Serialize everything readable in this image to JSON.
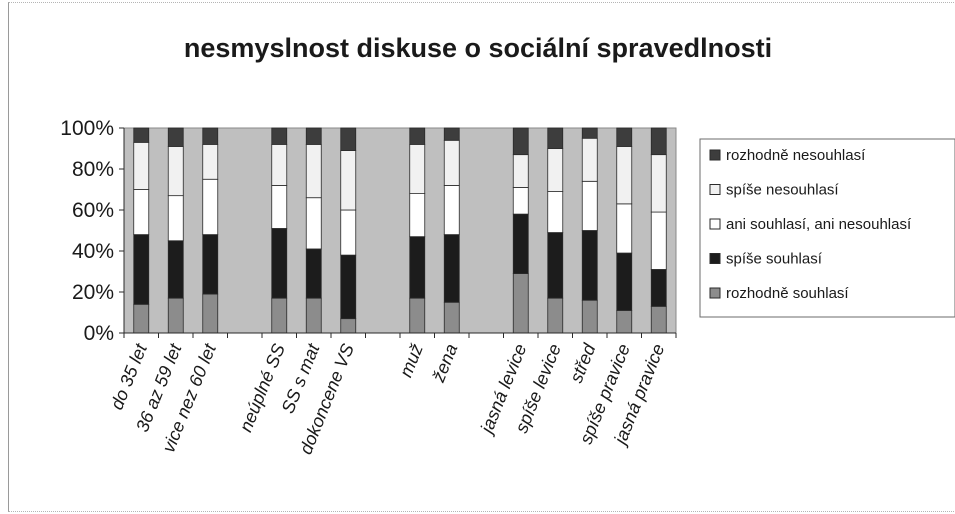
{
  "chart_data": {
    "type": "bar",
    "stacked": true,
    "percent": true,
    "title": "nesmyslnost diskuse o sociální spravedlnosti",
    "y_ticks": [
      "0%",
      "20%",
      "40%",
      "60%",
      "80%",
      "100%"
    ],
    "ylim": [
      0,
      100
    ],
    "grid": false,
    "legend_position": "right",
    "plot_background": "#bfbfbf",
    "slots": [
      "do 35 let",
      "36 az 59 let",
      "vice nez 60 let",
      "",
      "neúplné SS",
      "SS s mat",
      "dokoncene VS",
      "",
      "muž",
      "žena",
      "",
      "jasná levice",
      "spíše levice",
      "střed",
      "spíše pravice",
      "jasná pravice"
    ],
    "categories": [
      "do 35 let",
      "36 az 59 let",
      "vice nez 60 let",
      "neúplné SS",
      "SS s mat",
      "dokoncene VS",
      "muž",
      "žena",
      "jasná levice",
      "spíše levice",
      "střed",
      "spíše pravice",
      "jasná pravice"
    ],
    "series": [
      {
        "name": "rozhodně souhlasí",
        "color": "#8c8c8c",
        "values": [
          14,
          17,
          19,
          17,
          17,
          7,
          17,
          15,
          29,
          17,
          16,
          11,
          13
        ]
      },
      {
        "name": "spíše souhlasí",
        "color": "#1c1c1c",
        "values": [
          34,
          28,
          29,
          34,
          24,
          31,
          30,
          33,
          29,
          32,
          34,
          28,
          18
        ]
      },
      {
        "name": "ani souhlasí, ani nesouhlasí",
        "color": "#ffffff",
        "values": [
          22,
          22,
          27,
          21,
          25,
          22,
          21,
          24,
          13,
          20,
          24,
          24,
          28
        ]
      },
      {
        "name": "spíše nesouhlasí",
        "color": "#f1f1f1",
        "values": [
          23,
          24,
          17,
          20,
          26,
          29,
          24,
          22,
          16,
          21,
          21,
          28,
          28
        ]
      },
      {
        "name": "rozhodně nesouhlasí",
        "color": "#3d3d3d",
        "values": [
          7,
          9,
          8,
          8,
          8,
          11,
          8,
          6,
          13,
          10,
          5,
          9,
          13
        ]
      }
    ]
  }
}
